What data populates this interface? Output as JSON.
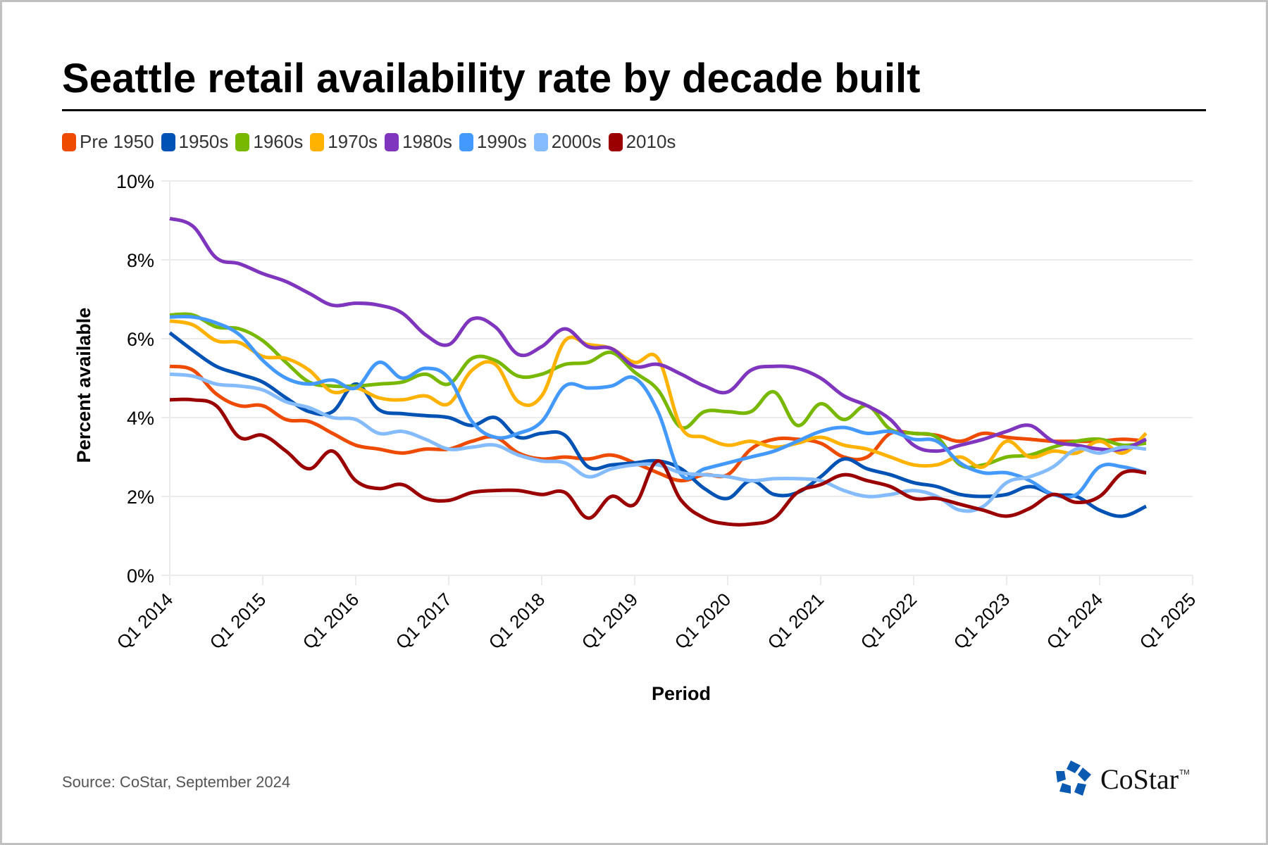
{
  "chart_data": {
    "type": "line",
    "title": "Seattle retail availability rate by decade built",
    "xlabel": "Period",
    "ylabel": "Percent available",
    "ylim": [
      0,
      10
    ],
    "yticks": [
      "0%",
      "2%",
      "4%",
      "6%",
      "8%",
      "10%"
    ],
    "ytick_values": [
      0,
      2,
      4,
      6,
      8,
      10
    ],
    "xticks": [
      "Q1 2014",
      "Q1 2015",
      "Q1 2016",
      "Q1 2017",
      "Q1 2018",
      "Q1 2019",
      "Q1 2020",
      "Q1 2021",
      "Q1 2022",
      "Q1 2023",
      "Q1 2024",
      "Q1 2025"
    ],
    "x_start": "Q1 2014",
    "x_end_axis": "Q1 2025",
    "x_frequency": "quarterly",
    "grid": true,
    "legend_position": "top-left",
    "series": [
      {
        "name": "Pre 1950",
        "color": "#EE4B00",
        "values": [
          5.3,
          5.2,
          4.6,
          4.3,
          4.3,
          3.95,
          3.9,
          3.6,
          3.3,
          3.2,
          3.1,
          3.2,
          3.2,
          3.4,
          3.5,
          3.1,
          2.95,
          3.0,
          2.95,
          3.05,
          2.85,
          2.6,
          2.4,
          2.55,
          2.55,
          3.2,
          3.45,
          3.45,
          3.35,
          3.0,
          3.0,
          3.6,
          3.6,
          3.55,
          3.4,
          3.6,
          3.5,
          3.45,
          3.4,
          3.4,
          3.4,
          3.45,
          3.4
        ]
      },
      {
        "name": "1950s",
        "color": "#0052B4",
        "values": [
          6.15,
          5.7,
          5.3,
          5.1,
          4.9,
          4.5,
          4.15,
          4.15,
          4.85,
          4.2,
          4.1,
          4.05,
          4.0,
          3.8,
          4.0,
          3.5,
          3.6,
          3.55,
          2.75,
          2.8,
          2.85,
          2.9,
          2.7,
          2.2,
          1.95,
          2.4,
          2.05,
          2.1,
          2.5,
          2.95,
          2.7,
          2.55,
          2.35,
          2.25,
          2.05,
          2.0,
          2.05,
          2.25,
          2.05,
          2.0,
          1.65,
          1.5,
          1.75
        ]
      },
      {
        "name": "1960s",
        "color": "#78B800",
        "values": [
          6.6,
          6.6,
          6.3,
          6.25,
          5.95,
          5.4,
          4.9,
          4.8,
          4.8,
          4.85,
          4.9,
          5.1,
          4.85,
          5.5,
          5.45,
          5.05,
          5.1,
          5.35,
          5.4,
          5.65,
          5.15,
          4.7,
          3.75,
          4.15,
          4.15,
          4.15,
          4.65,
          3.8,
          4.35,
          3.95,
          4.3,
          3.7,
          3.6,
          3.5,
          2.8,
          2.8,
          3.0,
          3.05,
          3.25,
          3.4,
          3.45,
          3.3,
          3.35
        ]
      },
      {
        "name": "1970s",
        "color": "#FFB300",
        "values": [
          6.45,
          6.35,
          5.95,
          5.9,
          5.55,
          5.5,
          5.2,
          4.65,
          4.75,
          4.5,
          4.45,
          4.55,
          4.35,
          5.2,
          5.35,
          4.4,
          4.55,
          5.95,
          5.85,
          5.75,
          5.4,
          5.5,
          3.75,
          3.5,
          3.3,
          3.4,
          3.25,
          3.35,
          3.5,
          3.3,
          3.2,
          3.0,
          2.8,
          2.8,
          3.0,
          2.75,
          3.4,
          3.0,
          3.15,
          3.1,
          3.4,
          3.1,
          3.6
        ]
      },
      {
        "name": "1980s",
        "color": "#7F35BE",
        "values": [
          9.05,
          8.85,
          8.05,
          7.9,
          7.65,
          7.45,
          7.15,
          6.85,
          6.9,
          6.85,
          6.65,
          6.1,
          5.85,
          6.5,
          6.3,
          5.6,
          5.8,
          6.25,
          5.8,
          5.75,
          5.3,
          5.35,
          5.1,
          4.8,
          4.65,
          5.2,
          5.3,
          5.25,
          5.0,
          4.55,
          4.3,
          3.95,
          3.3,
          3.15,
          3.3,
          3.45,
          3.65,
          3.8,
          3.4,
          3.3,
          3.2,
          3.2,
          3.45
        ]
      },
      {
        "name": "1990s",
        "color": "#4499FF",
        "values": [
          6.55,
          6.55,
          6.4,
          6.1,
          5.45,
          5.0,
          4.85,
          4.95,
          4.75,
          5.4,
          5.0,
          5.25,
          5.0,
          3.9,
          3.5,
          3.6,
          3.9,
          4.8,
          4.75,
          4.8,
          5.0,
          4.15,
          2.55,
          2.7,
          2.85,
          3.0,
          3.15,
          3.4,
          3.65,
          3.75,
          3.6,
          3.65,
          3.45,
          3.4,
          2.85,
          2.6,
          2.6,
          2.4,
          2.05,
          2.05,
          2.75,
          2.75,
          2.6
        ]
      },
      {
        "name": "2000s",
        "color": "#85BBFF",
        "values": [
          5.1,
          5.05,
          4.85,
          4.8,
          4.7,
          4.4,
          4.25,
          4.0,
          3.95,
          3.6,
          3.65,
          3.45,
          3.2,
          3.25,
          3.3,
          3.05,
          2.9,
          2.85,
          2.5,
          2.7,
          2.8,
          2.8,
          2.6,
          2.55,
          2.5,
          2.4,
          2.45,
          2.45,
          2.4,
          2.15,
          2.0,
          2.05,
          2.15,
          2.0,
          1.65,
          1.75,
          2.35,
          2.5,
          2.75,
          3.2,
          3.1,
          3.25,
          3.2
        ]
      },
      {
        "name": "2010s",
        "color": "#9B0000",
        "values": [
          4.45,
          4.45,
          4.3,
          3.5,
          3.55,
          3.15,
          2.7,
          3.15,
          2.4,
          2.2,
          2.3,
          1.95,
          1.9,
          2.1,
          2.15,
          2.15,
          2.05,
          2.1,
          1.45,
          2.0,
          1.8,
          2.9,
          1.9,
          1.45,
          1.3,
          1.3,
          1.45,
          2.1,
          2.3,
          2.55,
          2.4,
          2.25,
          1.95,
          1.95,
          1.8,
          1.65,
          1.5,
          1.7,
          2.05,
          1.85,
          2.0,
          2.6,
          2.6
        ]
      }
    ]
  },
  "footer": {
    "source": "Source: CoStar, September 2024",
    "logo_text": "CoStar",
    "logo_tm": "TM",
    "logo_icon": "costar-star-icon",
    "logo_color": "#0B5AB1"
  }
}
